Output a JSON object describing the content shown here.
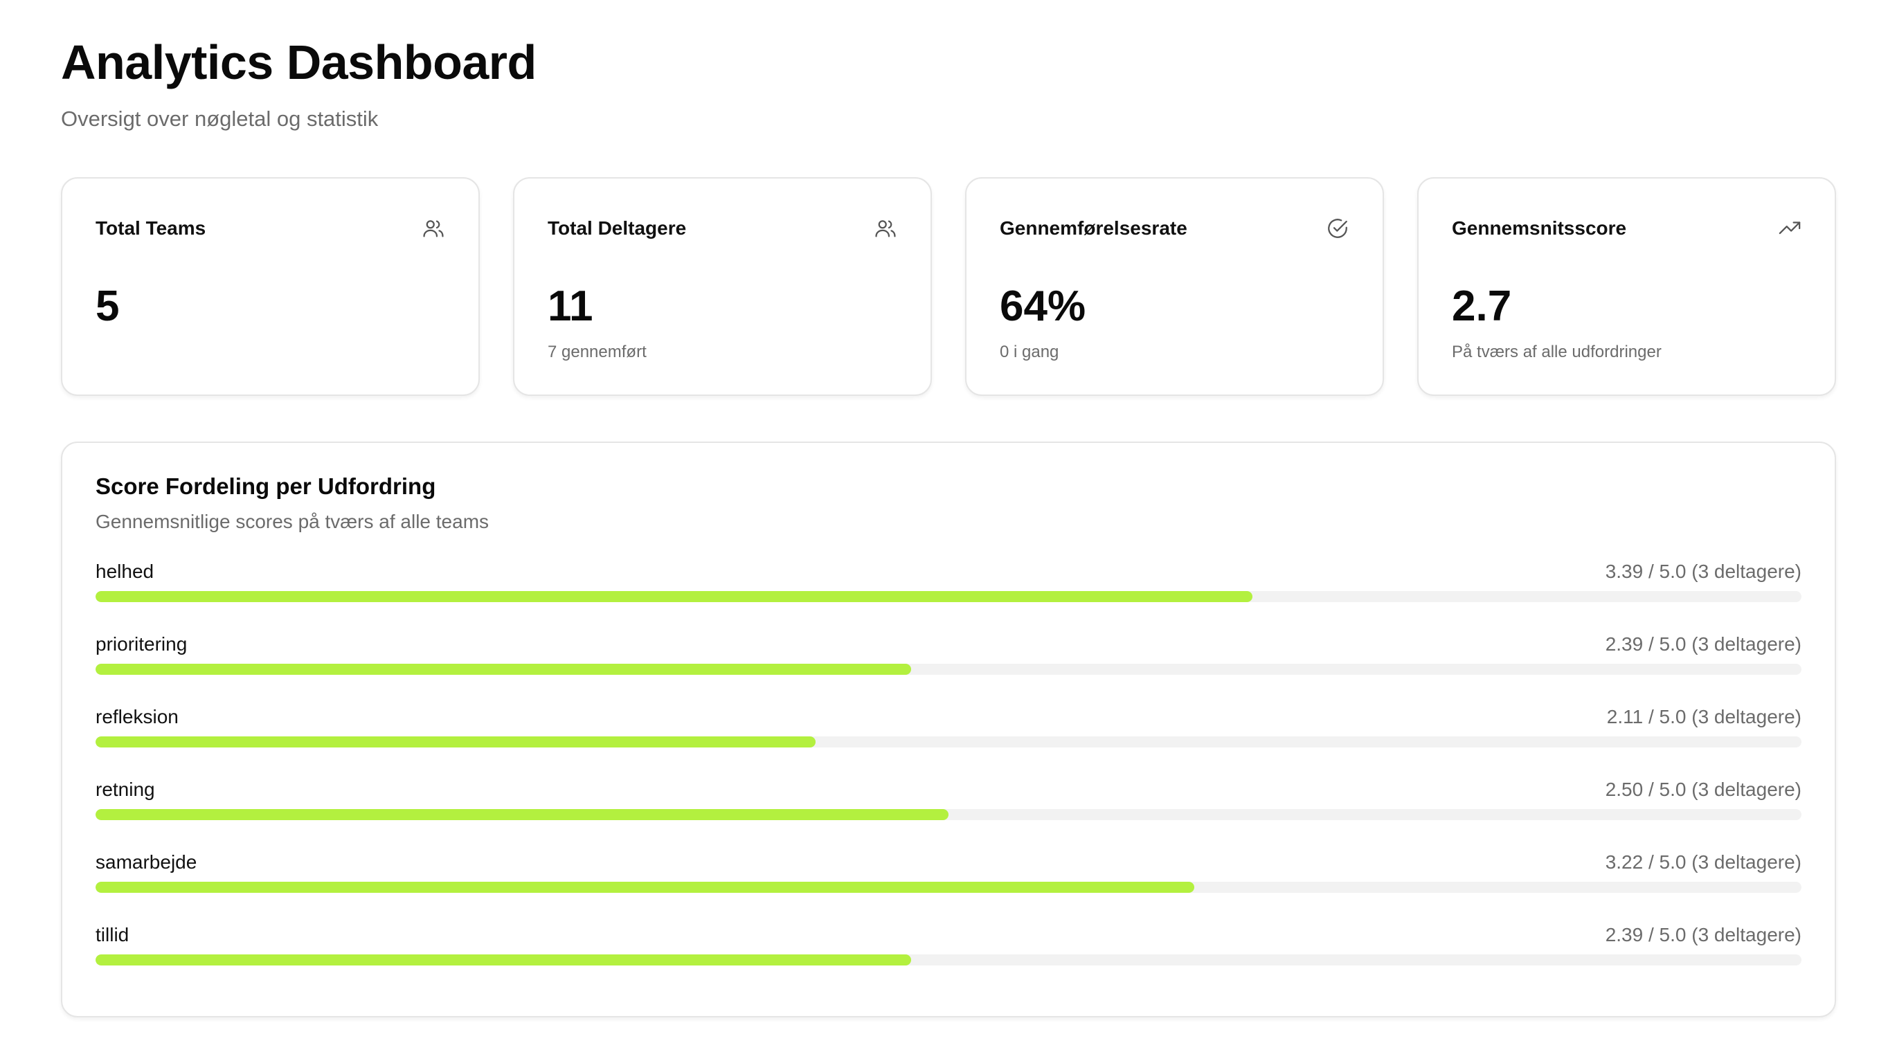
{
  "header": {
    "title": "Analytics Dashboard",
    "subtitle": "Oversigt over nøgletal og statistik"
  },
  "stats": [
    {
      "label": "Total Teams",
      "value": "5",
      "sub": "",
      "icon": "users-icon"
    },
    {
      "label": "Total Deltagere",
      "value": "11",
      "sub": "7 gennemført",
      "icon": "users-icon"
    },
    {
      "label": "Gennemførelsesrate",
      "value": "64%",
      "sub": "0 i gang",
      "icon": "check-circle-icon"
    },
    {
      "label": "Gennemsnitsscore",
      "value": "2.7",
      "sub": "På tværs af alle udfordringer",
      "icon": "trending-up-icon"
    }
  ],
  "panel": {
    "title": "Score Fordeling per Udfordring",
    "description": "Gennemsnitlige scores på tværs af alle teams",
    "rows": [
      {
        "label": "helhed",
        "value_text": "3.39 / 5.0 (3 deltagere)",
        "score": 3.39,
        "max": 5.0
      },
      {
        "label": "prioritering",
        "value_text": "2.39 / 5.0 (3 deltagere)",
        "score": 2.39,
        "max": 5.0
      },
      {
        "label": "refleksion",
        "value_text": "2.11 / 5.0 (3 deltagere)",
        "score": 2.11,
        "max": 5.0
      },
      {
        "label": "retning",
        "value_text": "2.50 / 5.0 (3 deltagere)",
        "score": 2.5,
        "max": 5.0
      },
      {
        "label": "samarbejde",
        "value_text": "3.22 / 5.0 (3 deltagere)",
        "score": 3.22,
        "max": 5.0
      },
      {
        "label": "tillid",
        "value_text": "2.39 / 5.0 (3 deltagere)",
        "score": 2.39,
        "max": 5.0
      }
    ]
  },
  "colors": {
    "accent": "#b3f03f",
    "track": "#f2f2f2",
    "muted_text": "#6b6b6b"
  }
}
